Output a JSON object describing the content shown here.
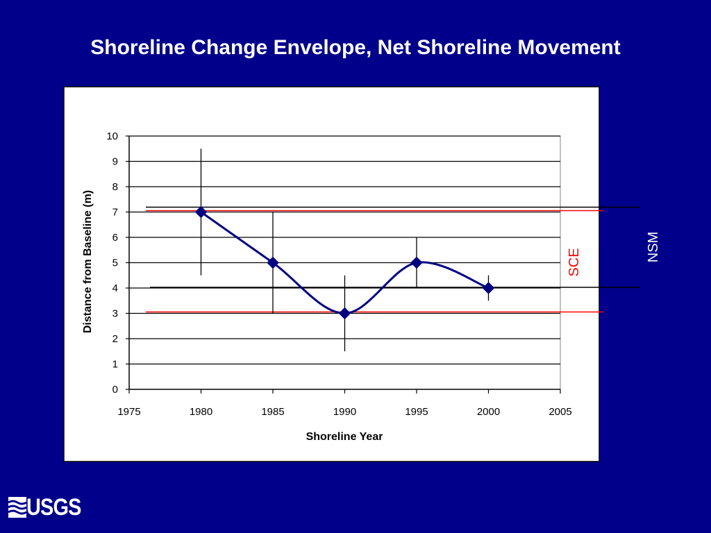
{
  "slide": {
    "title": "Shoreline Change Envelope, Net Shoreline Movement",
    "logo_text": "USGS"
  },
  "colors": {
    "background": "#00008a",
    "series_line": "#000080",
    "sce_lines": "#ff0000",
    "nsm_lines": "#000000",
    "sce_label": "#ff0000",
    "nsm_label": "#ffffff"
  },
  "chart_data": {
    "type": "line",
    "title": "",
    "xlabel": "Shoreline Year",
    "ylabel": "Distance from Baseline (m)",
    "xlim": [
      1975,
      2005
    ],
    "ylim": [
      0,
      10
    ],
    "xticks": [
      1975,
      1980,
      1985,
      1990,
      1995,
      2000,
      2005
    ],
    "yticks": [
      0,
      1,
      2,
      3,
      4,
      5,
      6,
      7,
      8,
      9,
      10
    ],
    "grid": "horizontal",
    "series": [
      {
        "marker": "diamond",
        "smooth": true,
        "x": [
          1980,
          1985,
          1990,
          1995,
          2000
        ],
        "y": [
          7,
          5,
          3,
          5,
          4
        ],
        "error_low": [
          4.5,
          3,
          1.5,
          4,
          3.5
        ],
        "error_high": [
          9.5,
          7,
          4.5,
          6,
          4.5
        ]
      }
    ],
    "reference_lines": [
      {
        "label": "SCE",
        "values": [
          7,
          3
        ]
      },
      {
        "label": "NSM",
        "values": [
          7,
          4
        ]
      }
    ]
  }
}
